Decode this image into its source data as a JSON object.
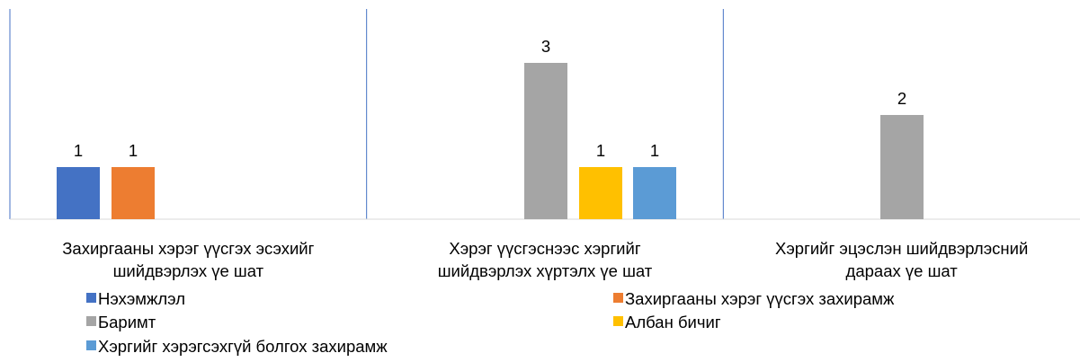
{
  "chart_data": {
    "type": "bar",
    "categories": [
      [
        "Захиргааны хэрэг үүсгэх эсэхийг",
        "шийдвэрлэх үе шат"
      ],
      [
        "Хэрэг үүсгэснээс хэргийг",
        "шийдвэрлэх хүртэлх үе шат"
      ],
      [
        "Хэргийг эцэслэн шийдвэрлэсний",
        "дараах үе шат"
      ]
    ],
    "series": [
      {
        "name": "Нэхэмжлэл",
        "color": "#4472C4",
        "values": [
          1,
          null,
          null
        ]
      },
      {
        "name": "Захиргааны хэрэг үүсгэх захирамж",
        "color": "#ED7D31",
        "values": [
          1,
          null,
          null
        ]
      },
      {
        "name": "Баримт",
        "color": "#A5A5A5",
        "values": [
          null,
          3,
          2
        ]
      },
      {
        "name": "Албан бичиг",
        "color": "#FFC000",
        "values": [
          null,
          1,
          null
        ]
      },
      {
        "name": "Хэргийг хэрэгсэхгүй болгох захирамж",
        "color": "#5B9BD5",
        "values": [
          null,
          1,
          null
        ]
      }
    ],
    "ylim": [
      0,
      4
    ],
    "grid": false,
    "legend": "bottom",
    "data_labels": true
  }
}
